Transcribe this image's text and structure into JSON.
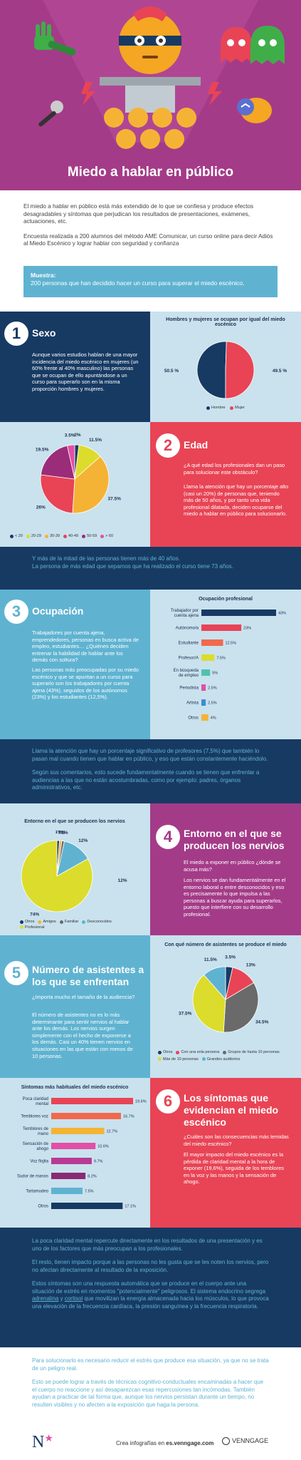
{
  "title": "Miedo a hablar en público",
  "intro": {
    "p1": "El miedo a hablar en público está más extendido de lo que se confiesa y produce efectos desagradables y síntomas que perjudican los resultados de presentaciones, exámenes, actuaciones, etc.",
    "p2": "Encuesta realizada a 200 alumnos del método AME Comunicar, un curso online para decir Adiós al Miedo Escénico y lograr hablar con seguridad y confianza",
    "sample_label": "Muestra:",
    "sample_text": "200 personas que han decidido hacer un curso para superar el miedo escénico."
  },
  "sections": {
    "s1": {
      "num": "1",
      "title": "Sexo",
      "text": "Aunque varios estudios hablan de una mayor incidencia del miedo escénico en mujeres (un 60% frente al 40% masculino) las personas que se ocupan de ello apuntándose a un curso para superarlo son en la misma proporción hombres y mujeres."
    },
    "s2": {
      "num": "2",
      "title": "Edad",
      "q": "¿A qué edad los profesionales dan un paso para solucionar este obstáculo?",
      "text": "Llama la atención que hay un porcentaje alto (casi un 20%) de personas que, teniendo más de 50 años, y por tanto una vida profesional dilatada, deciden ocuparse del miedo a hablar en público para solucionarlo."
    },
    "band1": {
      "p1": "Y más de la mitad de las personas tienen más de 40 años.",
      "p2": "La persona de más edad que sepamos que ha realizado el curso tiene 73 años."
    },
    "s3": {
      "num": "3",
      "title": "Ocupación",
      "text1": "Trabajadores por cuenta ajena, emprendedores, personas en busca activa de empleo, estudiantes… ¿Quiénes deciden entrenar la habilidad de hablar ante los demás con soltura?",
      "text2": "Las personas más preocupadas por su miedo escénico y que se apuntan a un curso para superarlo son los trabajadores por cuenta ajena (43%), seguidos de los autónomos (23%) y los estudiantes (12,5%)."
    },
    "band2": {
      "p1": "Llama la atención que hay un porcentaje significativo de profesores (7,5%) que también lo pasan mal cuando tienen que hablar en público, y eso que están constantemente haciéndolo.",
      "p2": "Según sus comentarios, esto sucede fundamentalmente cuando se tienen que enfrentar a audiencias a las que no están acostumbradas, como por ejemplo: padres, órganos administrativos, etc."
    },
    "s4": {
      "num": "4",
      "title": "Entorno en el que se producen los nervios",
      "q": "El miedo a exponer en público ¿dónde se acusa más?",
      "text": "Los nervios se dan fundamentalmente en el entorno laboral o entre desconocidos y eso es precisamente lo que impulsa a las personas a buscar ayuda para superarlos, puesto que interfiere con su desarrollo profesional."
    },
    "s5": {
      "num": "5",
      "title": "Número de asistentes a los que se enfrentan",
      "q": "¿Importa mucho el tamaño de la audiencia?",
      "text": "El número de asistentes no es lo más determinante para sentir nervios al hablar ante los demás. Los nervios surgen simplemente con el hecho de exponerse a los demás. Casi un 40% tienen nervios en situaciones en las que están con menos de 10 personas."
    },
    "s6": {
      "num": "6",
      "title": "Los síntomas que evidencian el miedo escénico",
      "q": "¿Cuáles son las consecuencias más temidas del miedo escénico?",
      "text": "El mayor impacto del miedo escénico es la pérdida de claridad mental a la hora de exponer (19,6%), seguida de los temblores en la voz y las manos y la sensación de ahogo."
    },
    "band3": {
      "p1": "La poca claridad mental repercute directamente en los resultados de una presentación y es uno de los factores que más preocupan a los profesionales.",
      "p2": "El resto, tienen impacto porque a las personas no les gusta que se les noten los nervios, pero no afectan directamente al resultado de la exposición.",
      "p3a": "Estos síntomas son una respuesta automática que se produce en el cuerpo ante una situación de estrés en momentos \"potencialmente\" peligrosos. El sistema endocrino segrega ",
      "p3b": "adrenalina",
      "p3c": " y ",
      "p3d": "cortisol",
      "p3e": " que movilizan la energía almacenada hacia los músculos, lo que provoca una elevación de la frecuencia cardíaca, la presión sanguínea y la frecuencia respiratoria."
    },
    "band4": {
      "p1": "Para solucionarlo es necesario reducir el estrés que produce esa situación, ya que no se trata de un peligro real.",
      "p2": "Esto se puede lograr a través de técnicas cognitivo-conductuales encaminadas a hacer que el cuerpo no reaccione y así desaparezcan esas repercusiones tan incómodas. También ayudan a practicar de tal forma que, aunque los nervios persistan durante un tiempo, no resulten visibles y no afecten a la exposición que haga la persona."
    }
  },
  "footer": {
    "logo": "N",
    "credit_prefix": "Crea infografías en ",
    "credit_site": "es.venngage.com",
    "brand": "VENNGAGE"
  },
  "colors": {
    "purple": "#a43b88",
    "navy": "#173a63",
    "blue": "#5fb3d1",
    "red": "#e84455",
    "light": "#c9e2ee"
  },
  "chart_data": [
    {
      "id": "sexo",
      "type": "pie",
      "title": "Hombres y mujeres se ocupan por igual del miedo escénico",
      "categories": [
        "Hombre",
        "Mujer"
      ],
      "values": [
        50.5,
        49.5
      ],
      "colors": [
        "#173a63",
        "#e84455"
      ]
    },
    {
      "id": "edad",
      "type": "pie",
      "title": "",
      "categories": [
        "< 20",
        "20-29",
        "30-39",
        "40-49",
        "50-59",
        "> 60"
      ],
      "values": [
        2,
        11.5,
        37.5,
        26,
        19.5,
        3.5
      ],
      "labels": [
        "2%",
        "11.5%",
        "37.5%",
        "26%",
        "19.5%",
        "3.5%"
      ],
      "colors": [
        "#173a63",
        "#dcdc2c",
        "#f5b335",
        "#e84455",
        "#9b2c7a",
        "#e24fa5"
      ]
    },
    {
      "id": "ocupacion",
      "type": "bar",
      "title": "Ocupación profesional",
      "categories": [
        "Trabajador por cuenta ajena",
        "Autónomo/a",
        "Estudiante",
        "Profesor/A",
        "En búsqueda de empleo",
        "Periodista",
        "Artista",
        "Otros"
      ],
      "values": [
        43,
        23,
        12.5,
        7.5,
        5,
        2.5,
        2.5,
        4
      ],
      "labels": [
        "43%",
        "23%",
        "12.5%",
        "7.5%",
        "5%",
        "2.5%",
        "2.5%",
        "4%"
      ],
      "colors": [
        "#173a63",
        "#e84455",
        "#f0694e",
        "#dcdc2c",
        "#4fc1b1",
        "#e24fa5",
        "#3a8fd1",
        "#f5b335"
      ]
    },
    {
      "id": "entorno",
      "type": "pie",
      "title": "Entorno en el que se producen los nervios",
      "categories": [
        "Otros",
        "Amigos",
        "Familiar",
        "Desconocidos",
        "Profesional"
      ],
      "values": [
        1,
        1,
        1,
        12,
        74
      ],
      "labels": [
        "1%",
        "1%",
        "1%",
        "12%",
        "74%"
      ],
      "extra_label": "12%",
      "colors": [
        "#173a63",
        "#f5b335",
        "#6a6a6a",
        "#5fb3d1",
        "#dcdc2c"
      ]
    },
    {
      "id": "asistentes",
      "type": "pie",
      "title": "Con qué número de asistentes se produce el miedo",
      "categories": [
        "Otros",
        "Con una sola persona",
        "Grupos de hasta 10 personas",
        "Más de 10 personas",
        "Grandes auditorios"
      ],
      "values": [
        3.5,
        13,
        34.5,
        37.5,
        11.5
      ],
      "labels": [
        "3.5%",
        "13%",
        "34.5%",
        "37.5%",
        "11.5%"
      ],
      "colors": [
        "#173a63",
        "#e84455",
        "#6a6a6a",
        "#dcdc2c",
        "#5fb3d1"
      ]
    },
    {
      "id": "sintomas",
      "type": "bar",
      "title": "Síntomas más habituales del miedo escénico",
      "categories": [
        "Poca claridad mental",
        "Temblores voz",
        "Temblores de mano",
        "Sensación de ahogo",
        "Voz flojita",
        "Sudor de manos",
        "Tartamudeo",
        "Otros"
      ],
      "values": [
        19.6,
        16.7,
        12.7,
        10.6,
        9.7,
        8.2,
        7.5,
        17.1
      ],
      "labels": [
        "19.6%",
        "16.7%",
        "12.7%",
        "10.6%",
        "9.7%",
        "8.2%",
        "7.5%",
        "17.1%"
      ],
      "colors": [
        "#e84455",
        "#f0694e",
        "#f5b335",
        "#e24fa5",
        "#b83a94",
        "#8a2a72",
        "#5fb3d1",
        "#173a63"
      ]
    }
  ]
}
